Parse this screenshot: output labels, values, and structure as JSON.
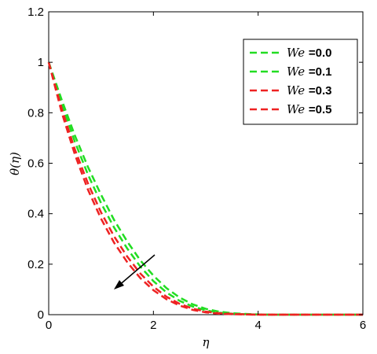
{
  "chart_data": {
    "type": "line",
    "title": "",
    "xlabel": "η",
    "ylabel": "θ(η)",
    "xlim": [
      0,
      6
    ],
    "ylim": [
      0,
      1.2
    ],
    "x_ticks": [
      0,
      2,
      4,
      6
    ],
    "y_ticks": [
      0,
      0.2,
      0.4,
      0.6,
      0.8,
      1,
      1.2
    ],
    "x_tick_labels": [
      "0",
      "2",
      "4",
      "6"
    ],
    "y_tick_labels": [
      "0",
      "0.2",
      "0.4",
      "0.6",
      "0.8",
      "1",
      "1.2"
    ],
    "grid": false,
    "legend_position": "top-right",
    "legend_symbol": "We",
    "annotation": "arrow pointing toward decreasing θ as We increases",
    "x": [
      0,
      0.25,
      0.5,
      0.75,
      1.0,
      1.25,
      1.5,
      1.75,
      2.0,
      2.25,
      2.5,
      2.75,
      3.0,
      3.25,
      3.5,
      3.75,
      4.0,
      4.25,
      4.5,
      5.0,
      5.5,
      6.0
    ],
    "series": [
      {
        "name": "=0.0",
        "color": "#22dd22",
        "dash": "dashed",
        "values": [
          1.0,
          0.85,
          0.71,
          0.585,
          0.475,
          0.375,
          0.29,
          0.215,
          0.155,
          0.105,
          0.068,
          0.041,
          0.023,
          0.012,
          0.006,
          0.003,
          0.001,
          0.0,
          0.0,
          0.0,
          0.0,
          0.0
        ]
      },
      {
        "name": "=0.1",
        "color": "#22dd22",
        "dash": "dashed",
        "values": [
          1.0,
          0.835,
          0.685,
          0.555,
          0.442,
          0.345,
          0.262,
          0.19,
          0.133,
          0.088,
          0.055,
          0.032,
          0.017,
          0.008,
          0.004,
          0.002,
          0.001,
          0.0,
          0.0,
          0.0,
          0.0,
          0.0
        ]
      },
      {
        "name": "=0.3",
        "color": "#ee2222",
        "dash": "dashed",
        "values": [
          1.0,
          0.815,
          0.655,
          0.52,
          0.405,
          0.31,
          0.23,
          0.163,
          0.111,
          0.071,
          0.043,
          0.024,
          0.012,
          0.006,
          0.003,
          0.001,
          0.0,
          0.0,
          0.0,
          0.0,
          0.0,
          0.0
        ]
      },
      {
        "name": "=0.5",
        "color": "#ee2222",
        "dash": "dashed",
        "values": [
          1.0,
          0.8,
          0.635,
          0.495,
          0.38,
          0.285,
          0.208,
          0.145,
          0.097,
          0.061,
          0.036,
          0.019,
          0.009,
          0.004,
          0.002,
          0.001,
          0.0,
          0.0,
          0.0,
          0.0,
          0.0,
          0.0
        ]
      }
    ]
  }
}
